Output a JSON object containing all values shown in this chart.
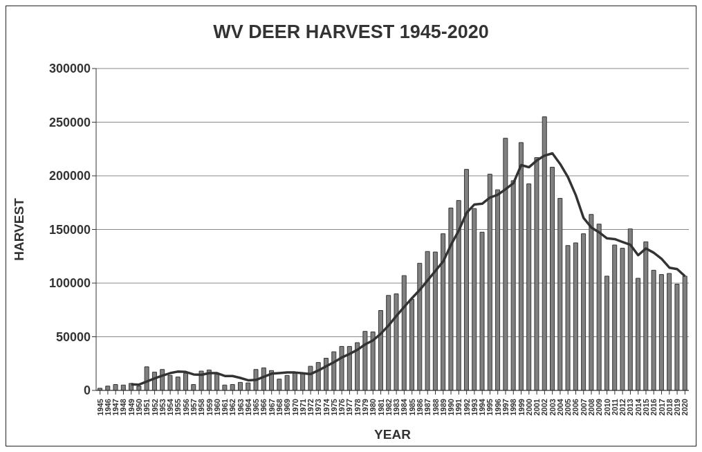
{
  "chart_data": {
    "type": "bar",
    "title": "WV DEER HARVEST 1945-2020",
    "xlabel": "YEAR",
    "ylabel": "HARVEST",
    "categories": [
      "1945",
      "1946",
      "1947",
      "1948",
      "1949",
      "1950",
      "1951",
      "1952",
      "1953",
      "1954",
      "1955",
      "1956",
      "1957",
      "1958",
      "1959",
      "1960",
      "1961",
      "1962",
      "1963",
      "1964",
      "1965",
      "1966",
      "1967",
      "1968",
      "1969",
      "1970",
      "1971",
      "1972",
      "1973",
      "1974",
      "1975",
      "1976",
      "1977",
      "1978",
      "1979",
      "1980",
      "1981",
      "1982",
      "1983",
      "1984",
      "1985",
      "1986",
      "1987",
      "1988",
      "1989",
      "1990",
      "1991",
      "1992",
      "1993",
      "1994",
      "1995",
      "1996",
      "1997",
      "1998",
      "1999",
      "2000",
      "2001",
      "2002",
      "2003",
      "2004",
      "2005",
      "2006",
      "2007",
      "2008",
      "2009",
      "2010",
      "2011",
      "2012",
      "2013",
      "2014",
      "2015",
      "2016",
      "2017",
      "2018",
      "2019",
      "2020"
    ],
    "series": [
      {
        "color": "#808080",
        "values": [
          2000,
          4000,
          5500,
          5000,
          6500,
          4000,
          22000,
          17000,
          19500,
          14000,
          12500,
          16000,
          5500,
          18000,
          19000,
          15000,
          5000,
          5500,
          7500,
          7000,
          19500,
          21000,
          18500,
          10500,
          14000,
          16000,
          15500,
          22500,
          26000,
          30000,
          36000,
          41000,
          41000,
          44500,
          55000,
          54500,
          74500,
          88500,
          90000,
          107000,
          85000,
          118500,
          129500,
          129000,
          146000,
          170000,
          177000,
          206000,
          169500,
          147500,
          201500,
          187000,
          235000,
          195500,
          231000,
          192500,
          217000,
          255000,
          208000,
          179000,
          135000,
          137500,
          146000,
          164000,
          155000,
          106500,
          135500,
          132500,
          150500,
          104500,
          138500,
          112000,
          108000,
          109000,
          99000,
          106500
        ]
      },
      {
        "type": "line",
        "color": "#333333",
        "values": [
          null,
          null,
          null,
          null,
          5600,
          5400,
          8300,
          11200,
          13800,
          16100,
          17600,
          17200,
          14900,
          14500,
          16100,
          16100,
          13400,
          13400,
          11600,
          9400,
          9800,
          12700,
          15600,
          16100,
          16700,
          16700,
          15900,
          15200,
          18600,
          22500,
          26300,
          30700,
          34000,
          37800,
          42900,
          46600,
          52800,
          60600,
          69400,
          77800,
          86000,
          93700,
          102500,
          111400,
          120200,
          135700,
          149000,
          165500,
          173300,
          174000,
          179700,
          182400,
          187500,
          193100,
          210000,
          208000,
          214300,
          218800,
          221000,
          211000,
          198700,
          182000,
          160700,
          151800,
          147300,
          141700,
          141000,
          138300,
          135700,
          126000,
          132300,
          128300,
          122700,
          114400,
          113100,
          106400
        ]
      }
    ],
    "ylim": [
      0,
      300000
    ],
    "yticks": [
      0,
      50000,
      100000,
      150000,
      200000,
      250000,
      300000
    ],
    "grid": "y",
    "marker": "none"
  }
}
